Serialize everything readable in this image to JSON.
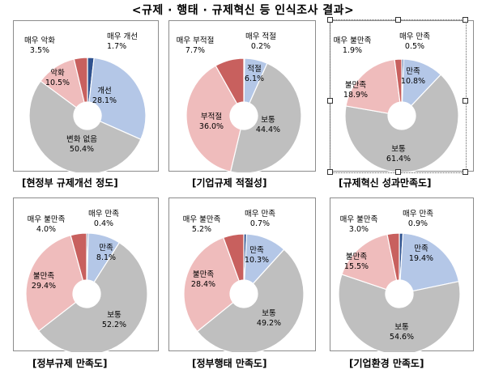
{
  "title": "<규제 · 행태 · 규제혁신 등 인식조사 결과>",
  "colors": {
    "very_good": "#2f528f",
    "good": "#b4c7e7",
    "neutral": "#bfbfbf",
    "bad": "#efbcbc",
    "very_bad": "#c8605e",
    "stroke": "#ffffff",
    "text": "#000000"
  },
  "chart_data": [
    {
      "type": "pie",
      "style": "donut",
      "caption": "현정부 규제개선 정도",
      "categories": [
        "매우 개선",
        "개선",
        "변화 없음",
        "악화",
        "매우 악화"
      ],
      "values": [
        1.7,
        28.1,
        50.4,
        10.5,
        3.5
      ],
      "value_labels": [
        "1.7%",
        "28.1%",
        "50.4%",
        "10.5%",
        "3.5%"
      ]
    },
    {
      "type": "pie",
      "style": "donut",
      "caption": "기업규제 적절성",
      "categories": [
        "매우 적절",
        "적절",
        "보통",
        "부적절",
        "매우 부적절"
      ],
      "values": [
        0.2,
        6.1,
        44.4,
        36.0,
        7.7
      ],
      "value_labels": [
        "0.2%",
        "6.1%",
        "44.4%",
        "36.0%",
        "7.7%"
      ]
    },
    {
      "type": "pie",
      "style": "donut",
      "caption": "규제혁신 성과만족도",
      "categories": [
        "매우 만족",
        "만족",
        "보통",
        "불만족",
        "매우 불만족"
      ],
      "values": [
        0.5,
        10.8,
        61.4,
        18.9,
        1.9
      ],
      "value_labels": [
        "0.5%",
        "10.8%",
        "61.4%",
        "18.9%",
        "1.9%"
      ]
    },
    {
      "type": "pie",
      "style": "donut",
      "caption": "정부규제 만족도",
      "categories": [
        "매우 만족",
        "만족",
        "보통",
        "불만족",
        "매우 불만족"
      ],
      "values": [
        0.4,
        8.1,
        52.2,
        29.4,
        4.0
      ],
      "value_labels": [
        "0.4%",
        "8.1%",
        "52.2%",
        "29.4%",
        "4.0%"
      ]
    },
    {
      "type": "pie",
      "style": "donut",
      "caption": "정부행태 만족도",
      "categories": [
        "매우 만족",
        "만족",
        "보통",
        "불만족",
        "매우 불만족"
      ],
      "values": [
        0.7,
        10.3,
        49.2,
        28.4,
        5.2
      ],
      "value_labels": [
        "0.7%",
        "10.3%",
        "49.2%",
        "28.4%",
        "5.2%"
      ]
    },
    {
      "type": "pie",
      "style": "donut",
      "caption": "기업환경 만족도",
      "categories": [
        "매우 만족",
        "만족",
        "보통",
        "불만족",
        "매우 불만족"
      ],
      "values": [
        0.9,
        19.4,
        54.6,
        15.5,
        3.0
      ],
      "value_labels": [
        "0.9%",
        "19.4%",
        "54.6%",
        "15.5%",
        "3.0%"
      ]
    }
  ]
}
